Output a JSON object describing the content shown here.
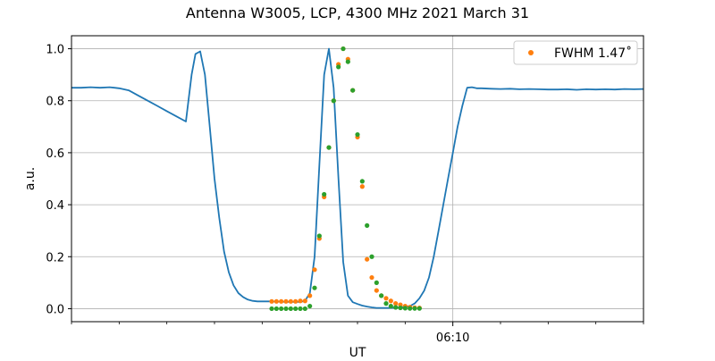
{
  "chart_data": {
    "type": "scatter",
    "title": "Antenna W3005, LCP, 4300 MHz 2021 March 31",
    "xlabel": "UT",
    "ylabel": "a.u.",
    "xlim": [
      0,
      60
    ],
    "ylim": [
      -0.05,
      1.05
    ],
    "x_ticks": [
      {
        "x": 40,
        "label": "06:10"
      }
    ],
    "x_minor_ticks": [
      0,
      5,
      10,
      15,
      20,
      25,
      30,
      35,
      45,
      50,
      55,
      60
    ],
    "y_ticks": [
      {
        "y": 0.0,
        "label": "0.0"
      },
      {
        "y": 0.2,
        "label": "0.2"
      },
      {
        "y": 0.4,
        "label": "0.4"
      },
      {
        "y": 0.6,
        "label": "0.6"
      },
      {
        "y": 0.8,
        "label": "0.8"
      },
      {
        "y": 1.0,
        "label": "1.0"
      }
    ],
    "grid": true,
    "legend": {
      "placement": "top-right",
      "entries": [
        {
          "label": "FWHM 1.47$^\\circ$",
          "display": "FWHM 1.47˚",
          "color": "#ff7f0e"
        }
      ]
    },
    "series": [
      {
        "kind": "line",
        "color": "#1f77b4",
        "x": [
          0,
          1,
          2,
          3,
          4,
          5,
          6,
          7,
          8,
          9,
          10,
          11,
          12,
          12.6,
          13,
          13.5,
          14,
          14.5,
          15,
          15.5,
          16,
          16.5,
          17,
          17.5,
          18,
          18.5,
          19,
          19.5,
          20,
          20.5,
          21,
          21.5,
          22,
          22.5,
          23,
          23.5,
          24,
          24.5,
          25,
          25.5,
          26,
          26.5,
          27,
          27.5,
          28,
          28.5,
          29,
          29.5,
          30,
          30.5,
          31,
          31.5,
          32,
          32.5,
          33,
          33.5,
          34,
          34.5,
          35,
          35.5,
          36,
          36.5,
          37,
          37.5,
          38,
          38.5,
          39,
          39.5,
          40,
          40.5,
          41,
          41.5,
          42,
          42.5,
          43,
          44,
          45,
          46,
          47,
          48,
          49,
          50,
          51,
          52,
          53,
          54,
          55,
          56,
          57,
          58,
          59,
          60
        ],
        "y": [
          0.85,
          0.85,
          0.852,
          0.85,
          0.852,
          0.848,
          0.84,
          0.82,
          0.8,
          0.78,
          0.76,
          0.74,
          0.72,
          0.9,
          0.98,
          0.99,
          0.9,
          0.7,
          0.5,
          0.35,
          0.22,
          0.14,
          0.09,
          0.06,
          0.045,
          0.035,
          0.03,
          0.028,
          0.028,
          0.028,
          0.028,
          0.027,
          0.027,
          0.026,
          0.026,
          0.026,
          0.026,
          0.03,
          0.06,
          0.2,
          0.55,
          0.9,
          1.0,
          0.85,
          0.5,
          0.18,
          0.05,
          0.025,
          0.018,
          0.012,
          0.008,
          0.005,
          0.003,
          0.003,
          0.003,
          0.003,
          0.004,
          0.005,
          0.007,
          0.01,
          0.02,
          0.04,
          0.07,
          0.12,
          0.2,
          0.3,
          0.4,
          0.5,
          0.6,
          0.7,
          0.78,
          0.85,
          0.852,
          0.848,
          0.848,
          0.846,
          0.845,
          0.846,
          0.844,
          0.845,
          0.844,
          0.843,
          0.843,
          0.844,
          0.842,
          0.844,
          0.843,
          0.844,
          0.843,
          0.845,
          0.844,
          0.845
        ]
      },
      {
        "kind": "scatter",
        "name": "FWHM 1.47$^\\circ$",
        "color": "#ff7f0e",
        "x": [
          21,
          21.5,
          22,
          22.5,
          23,
          23.5,
          24,
          24.5,
          25,
          25.5,
          26,
          26.5,
          27,
          27.5,
          28,
          28.5,
          29,
          29.5,
          30,
          30.5,
          31,
          31.5,
          32,
          32.5,
          33,
          33.5,
          34,
          34.5,
          35,
          35.5,
          36,
          36.5
        ],
        "y": [
          0.028,
          0.028,
          0.028,
          0.028,
          0.028,
          0.028,
          0.03,
          0.03,
          0.05,
          0.15,
          0.27,
          0.43,
          0.62,
          0.8,
          0.94,
          1.0,
          0.96,
          0.84,
          0.66,
          0.47,
          0.19,
          0.12,
          0.07,
          0.05,
          0.04,
          0.03,
          0.02,
          0.015,
          0.01,
          0.006,
          0.004,
          0.003
        ]
      },
      {
        "kind": "scatter",
        "color": "#2ca02c",
        "x": [
          21,
          21.5,
          22,
          22.5,
          23,
          23.5,
          24,
          24.5,
          25,
          25.5,
          26,
          26.5,
          27,
          27.5,
          28,
          28.5,
          29,
          29.5,
          30,
          30.5,
          31,
          31.5,
          32,
          32.5,
          33,
          33.5,
          34,
          34.5,
          35,
          35.5,
          36,
          36.5
        ],
        "y": [
          0.0,
          0.0,
          0.0,
          0.0,
          0.0,
          0.0,
          0.0,
          0.0,
          0.01,
          0.08,
          0.28,
          0.44,
          0.62,
          0.8,
          0.93,
          1.0,
          0.95,
          0.84,
          0.67,
          0.49,
          0.32,
          0.2,
          0.1,
          0.05,
          0.02,
          0.01,
          0.005,
          0.003,
          0.002,
          0.001,
          0.001,
          0.001
        ]
      }
    ]
  }
}
